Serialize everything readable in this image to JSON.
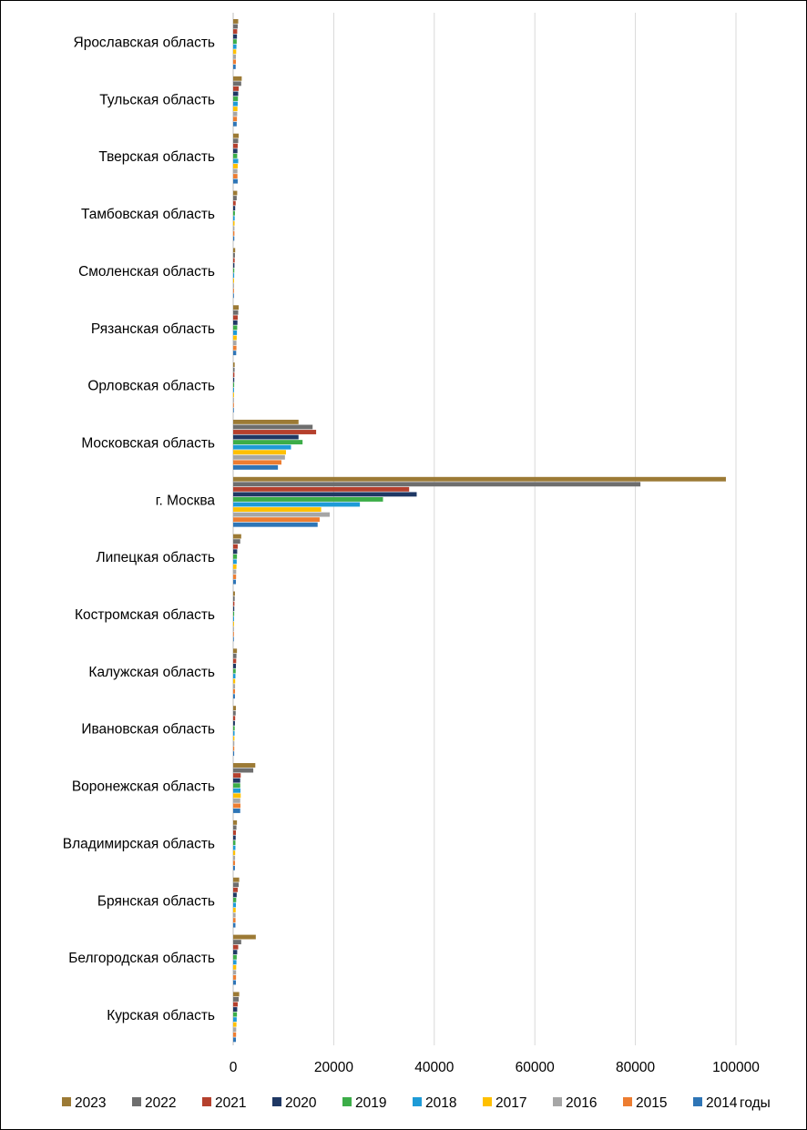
{
  "chart_data": {
    "type": "bar",
    "orientation": "horizontal",
    "title": "",
    "xlabel": "",
    "ylabel": "",
    "xlim": [
      0,
      100000
    ],
    "x_ticks": [
      0,
      20000,
      40000,
      60000,
      80000,
      100000
    ],
    "x_tick_labels": [
      "0",
      "20000",
      "40000",
      "60000",
      "80000",
      "100000"
    ],
    "grid": "vertical",
    "legend_position": "bottom",
    "legend_suffix": "годы",
    "categories": [
      "Ярославская область",
      "Тульская область",
      "Тверская область",
      "Тамбовская область",
      "Смоленская область",
      "Рязанская область",
      "Орловская область",
      "Московская область",
      "г. Москва",
      "Липецкая область",
      "Костромская область",
      "Калужская область",
      "Ивановская область",
      "Воронежская область",
      "Владимирская область",
      "Брянская область",
      "Белгородская область",
      "Курская область"
    ],
    "series": [
      {
        "name": "2023",
        "color": "#9c7a35",
        "values": [
          1000,
          1700,
          1100,
          800,
          400,
          1100,
          300,
          13000,
          98000,
          1600,
          350,
          750,
          550,
          4400,
          750,
          1200,
          4500,
          1200
        ]
      },
      {
        "name": "2022",
        "color": "#6e6e6e",
        "values": [
          900,
          1600,
          1000,
          700,
          350,
          1000,
          280,
          15800,
          81000,
          1400,
          300,
          650,
          500,
          4000,
          650,
          1100,
          1600,
          1100
        ]
      },
      {
        "name": "2021",
        "color": "#b5402d",
        "values": [
          800,
          1100,
          900,
          500,
          300,
          900,
          250,
          16500,
          35000,
          900,
          250,
          600,
          400,
          1500,
          550,
          900,
          1000,
          900
        ]
      },
      {
        "name": "2020",
        "color": "#1f3864",
        "values": [
          750,
          1000,
          850,
          400,
          250,
          850,
          220,
          13000,
          36500,
          800,
          220,
          550,
          350,
          1400,
          500,
          700,
          800,
          800
        ]
      },
      {
        "name": "2019",
        "color": "#3cad48",
        "values": [
          700,
          950,
          800,
          350,
          220,
          800,
          200,
          13800,
          29800,
          750,
          200,
          500,
          300,
          1400,
          450,
          600,
          700,
          750
        ]
      },
      {
        "name": "2018",
        "color": "#1e9bd7",
        "values": [
          650,
          900,
          1000,
          300,
          200,
          750,
          180,
          11500,
          25200,
          700,
          180,
          450,
          280,
          1450,
          450,
          550,
          650,
          700
        ]
      },
      {
        "name": "2017",
        "color": "#ffc000",
        "values": [
          600,
          850,
          900,
          280,
          180,
          700,
          170,
          10500,
          17500,
          650,
          170,
          400,
          250,
          1500,
          400,
          500,
          600,
          650
        ]
      },
      {
        "name": "2016",
        "color": "#a6a6a6",
        "values": [
          550,
          800,
          850,
          250,
          170,
          650,
          160,
          10300,
          19200,
          600,
          160,
          380,
          230,
          1400,
          380,
          480,
          580,
          600
        ]
      },
      {
        "name": "2015",
        "color": "#ed7d31",
        "values": [
          550,
          750,
          850,
          250,
          160,
          650,
          150,
          9600,
          17200,
          580,
          150,
          370,
          220,
          1450,
          370,
          470,
          570,
          580
        ]
      },
      {
        "name": "2014",
        "color": "#2e75b6",
        "values": [
          500,
          700,
          900,
          230,
          150,
          600,
          140,
          8900,
          16800,
          550,
          140,
          350,
          200,
          1400,
          350,
          450,
          550,
          550
        ]
      }
    ]
  }
}
